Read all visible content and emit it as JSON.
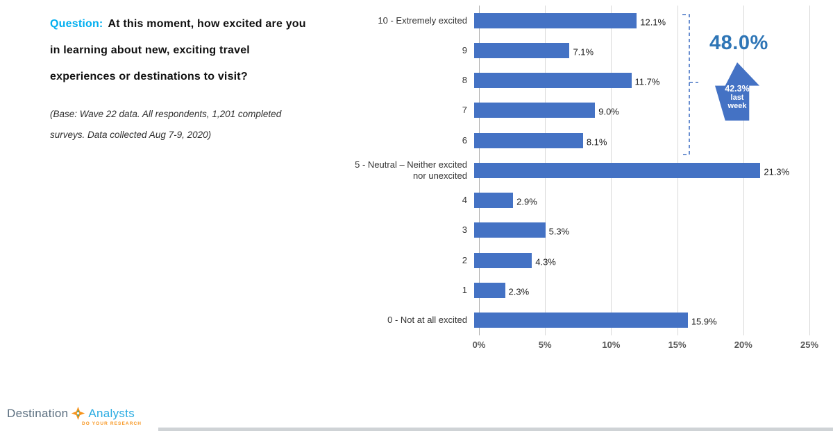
{
  "question": {
    "label": "Question:",
    "text": "At this moment, how excited are you in learning about new, exciting travel experiences or destinations to visit?"
  },
  "base_note": "(Base: Wave 22 data. All respondents, 1,201 completed surveys. Data collected Aug 7-9, 2020)",
  "annotation": {
    "current_value": "48.0%",
    "arrow_value": "42.3%",
    "arrow_word1": "last",
    "arrow_word2": "week"
  },
  "logo": {
    "name_part1": "Destination",
    "name_part2": "Analysts",
    "tagline": "DO YOUR RESEARCH"
  },
  "colors": {
    "bar": "#4472C4",
    "annotation_blue": "#2E75B6",
    "question_label": "#00AEEF",
    "grid": "#D9D9D9",
    "logo_gray": "#5A6E7F",
    "logo_cyan": "#29ABE2",
    "logo_orange": "#F7941D"
  },
  "chart_data": {
    "type": "bar",
    "orientation": "horizontal",
    "categories": [
      "10 - Extremely excited",
      "9",
      "8",
      "7",
      "6",
      "5 - Neutral – Neither excited nor unexcited",
      "4",
      "3",
      "2",
      "1",
      "0 - Not at all excited"
    ],
    "values": [
      12.1,
      7.1,
      11.7,
      9.0,
      8.1,
      21.3,
      2.9,
      5.3,
      4.3,
      2.3,
      15.9
    ],
    "value_labels": [
      "12.1%",
      "7.1%",
      "11.7%",
      "9.0%",
      "8.1%",
      "21.3%",
      "2.9%",
      "5.3%",
      "4.3%",
      "2.3%",
      "15.9%"
    ],
    "xlim": [
      0,
      25
    ],
    "x_ticks": [
      "0%",
      "5%",
      "10%",
      "15%",
      "20%",
      "25%"
    ],
    "grid": true,
    "legend": false
  }
}
